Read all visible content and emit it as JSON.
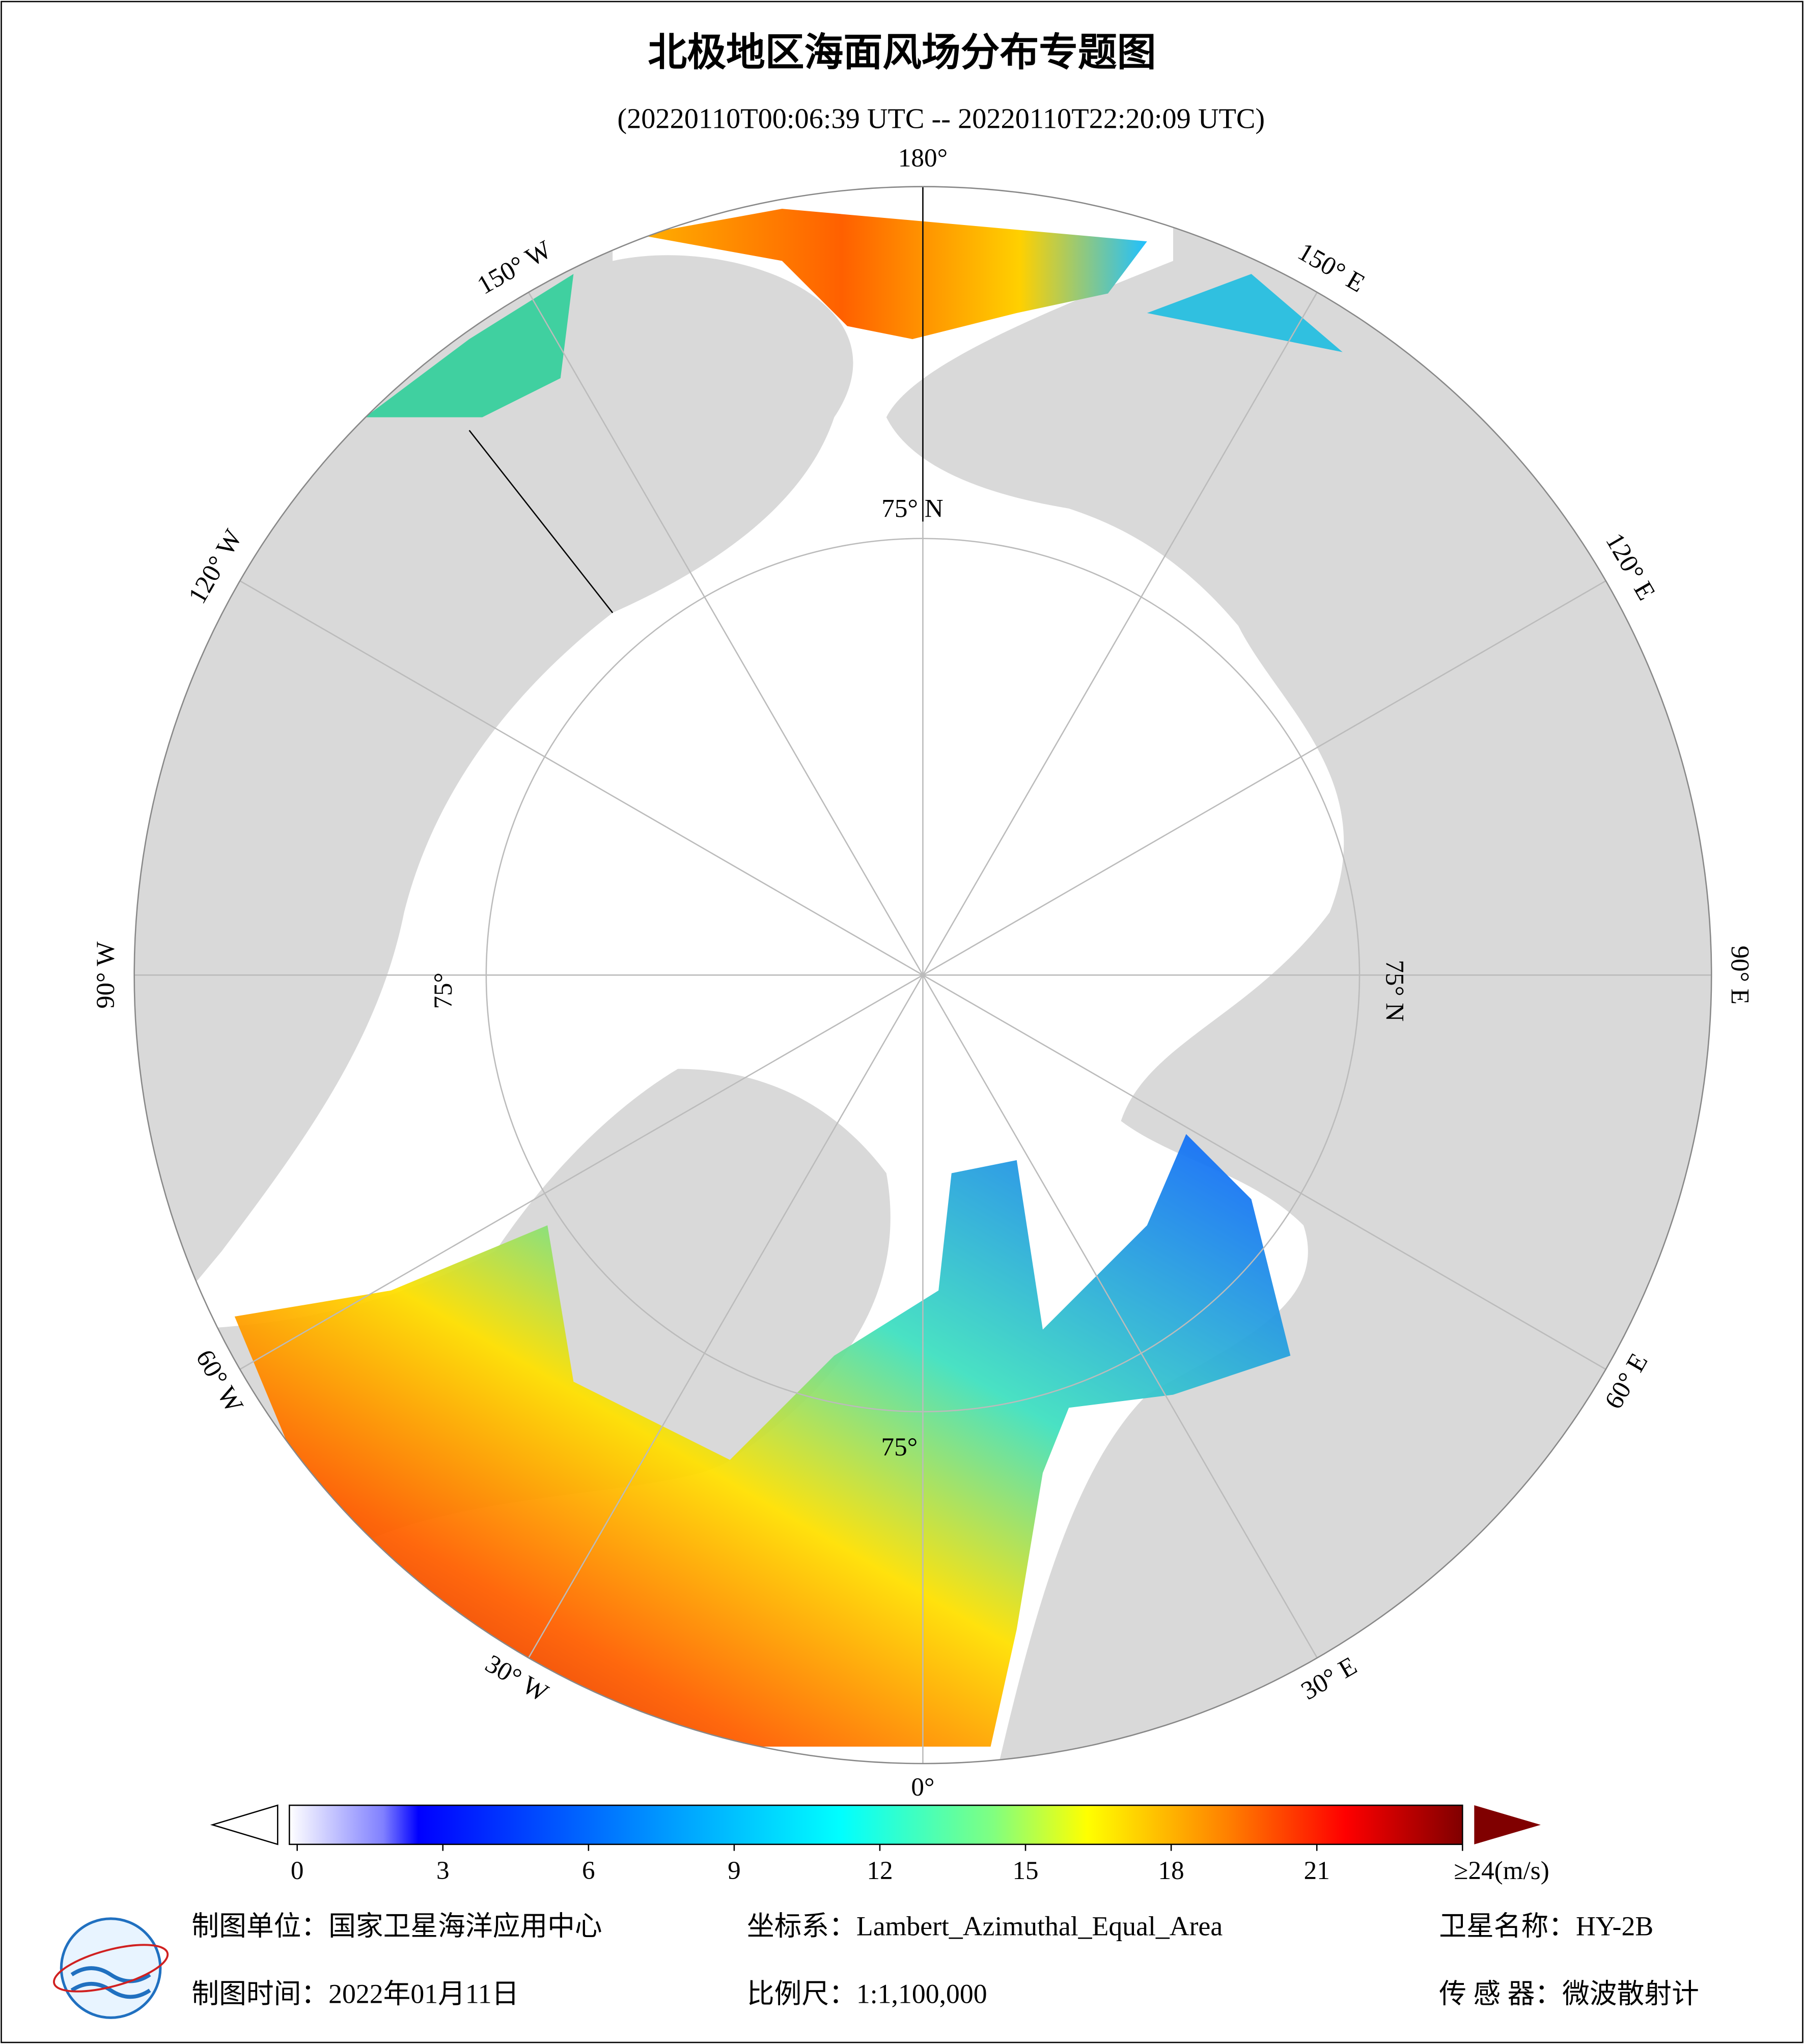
{
  "title": "北极地区海面风场分布专题图",
  "subtitle": "(20220110T00:06:39 UTC -- 20220110T22:20:09 UTC)",
  "graticule_labels": [
    "180°",
    "150° E",
    "120° E",
    "90° E",
    "60° E",
    "30° E",
    "0°",
    "30° W",
    "60° W",
    "90° W",
    "120° W",
    "150° W"
  ],
  "latitude_labels": [
    "75° N",
    "75° N",
    "75°",
    "75°"
  ],
  "colorbar": {
    "lim": [
      0,
      24
    ],
    "ticks": [
      0,
      3,
      6,
      9,
      12,
      15,
      18,
      21,
      {
        "value": 24,
        "label": "≥24(m/s)"
      }
    ]
  },
  "footer": {
    "unit": "制图单位：国家卫星海洋应用中心",
    "coords": "坐标系：Lambert_Azimuthal_Equal_Area",
    "satellite": "卫星名称：HY-2B",
    "date": "制图时间：2022年01月11日",
    "scale": "比例尺：1:1,100,000",
    "sensor": "传 感 器：微波散射计"
  }
}
